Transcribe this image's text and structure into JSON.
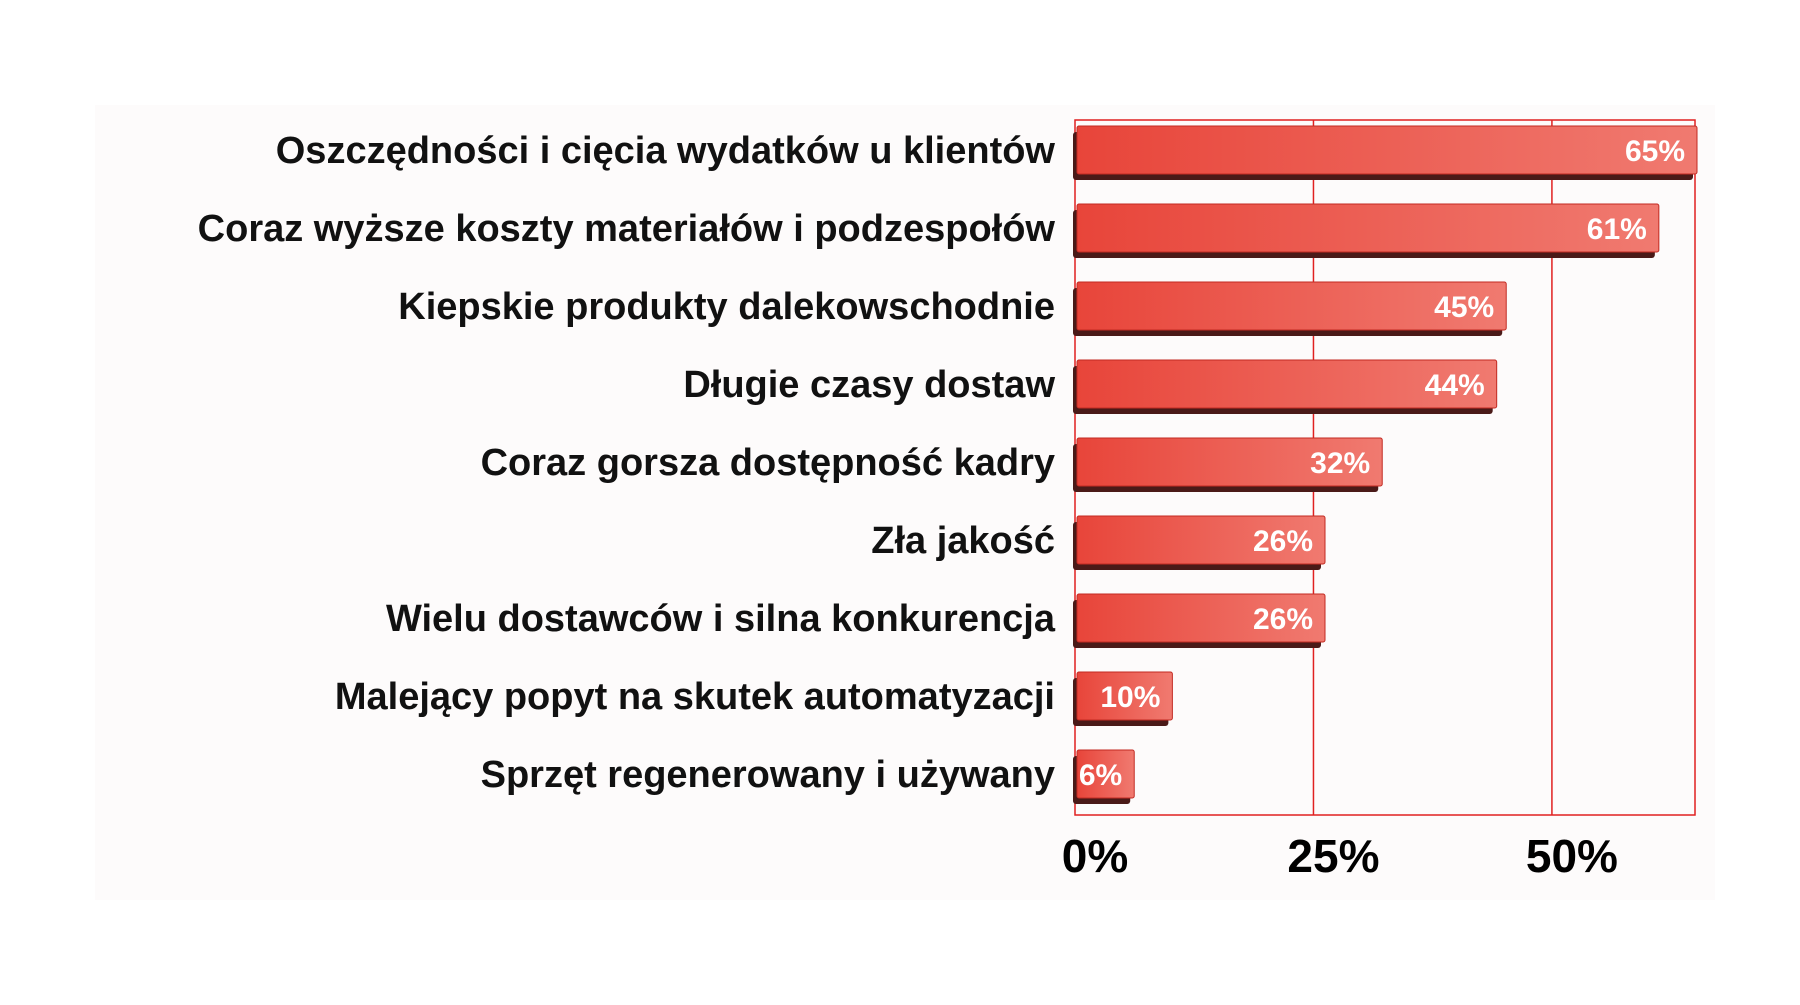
{
  "colors": {
    "bar": "#e8453a",
    "bar_highlight": "#f07a70",
    "bar_shadow": "#4a1a18",
    "plot_border": "#e02020",
    "gridline": "#e02020",
    "label_text": "#111111",
    "value_text": "#ffffff",
    "plot_area_background": "#fdfbfb"
  },
  "chart_data": {
    "type": "bar",
    "orientation": "horizontal",
    "title": "",
    "xlabel": "",
    "ylabel": "",
    "categories": [
      "Oszczędności i cięcia wydatków u klientów",
      "Coraz wyższe koszty materiałów i podzespołów",
      "Kiepskie produkty dalekowschodnie",
      "Długie czasy dostaw",
      "Coraz gorsza dostępność kadry",
      "Zła jakość",
      "Wielu dostawców i silna konkurencja",
      "Malejący popyt na skutek automatyzacji",
      "Sprzęt regenerowany i używany"
    ],
    "values": [
      65,
      61,
      45,
      44,
      32,
      26,
      26,
      10,
      6
    ],
    "value_labels": [
      "65%",
      "61%",
      "45%",
      "44%",
      "32%",
      "26%",
      "26%",
      "10%",
      "6%"
    ],
    "xlim": [
      0,
      65
    ],
    "x_ticks": [
      0,
      25,
      50
    ],
    "x_tick_labels": [
      "0%",
      "25%",
      "50%"
    ],
    "grid": true,
    "legend": "none"
  }
}
